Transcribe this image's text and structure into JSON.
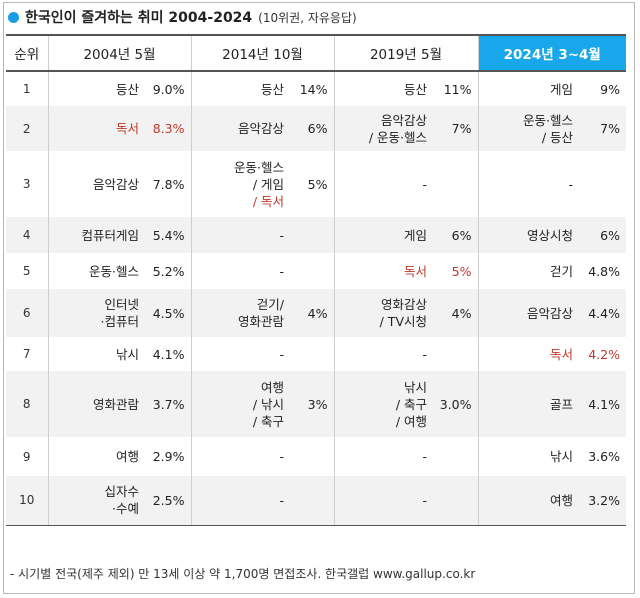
{
  "title": "한국인이 즐겨하는 취미 2004-2024",
  "subtitle": "(10위권, 자유응답)",
  "colors": {
    "accent": "#18a7ea",
    "highlight_text": "#c0392b",
    "shade": "#f2f2f2"
  },
  "header": {
    "rank": "순위",
    "periods": [
      "2004년 5월",
      "2014년 10월",
      "2019년 5월",
      "2024년 3~4월"
    ]
  },
  "rows": [
    {
      "rank": "1",
      "cells": [
        {
          "lines": [
            "등산"
          ],
          "pct": "9.0%",
          "red": false
        },
        {
          "lines": [
            "등산"
          ],
          "pct": "14%",
          "red": false
        },
        {
          "lines": [
            "등산"
          ],
          "pct": "11%",
          "red": false
        },
        {
          "lines": [
            "게임"
          ],
          "pct": "9%",
          "red": false
        }
      ]
    },
    {
      "rank": "2",
      "cells": [
        {
          "lines": [
            "독서"
          ],
          "pct": "8.3%",
          "red": true
        },
        {
          "lines": [
            "음악감상"
          ],
          "pct": "6%",
          "red": false
        },
        {
          "lines": [
            "음악감상",
            "/ 운동·헬스"
          ],
          "pct": "7%",
          "red": false
        },
        {
          "lines": [
            "운동·헬스",
            "/ 등산"
          ],
          "pct": "7%",
          "red": false
        }
      ]
    },
    {
      "rank": "3",
      "cells": [
        {
          "lines": [
            "음악감상"
          ],
          "pct": "7.8%",
          "red": false
        },
        {
          "lines": [
            "운동·헬스",
            "/ 게임",
            "/ 독서"
          ],
          "pct": "5%",
          "red": false,
          "red_line": 2
        },
        {
          "lines": [
            "-"
          ],
          "pct": "",
          "red": false
        },
        {
          "lines": [
            "-"
          ],
          "pct": "",
          "red": false
        }
      ]
    },
    {
      "rank": "4",
      "cells": [
        {
          "lines": [
            "컴퓨터게임"
          ],
          "pct": "5.4%",
          "red": false
        },
        {
          "lines": [
            "-"
          ],
          "pct": "",
          "red": false
        },
        {
          "lines": [
            "게임"
          ],
          "pct": "6%",
          "red": false
        },
        {
          "lines": [
            "영상시청"
          ],
          "pct": "6%",
          "red": false
        }
      ]
    },
    {
      "rank": "5",
      "cells": [
        {
          "lines": [
            "운동·헬스"
          ],
          "pct": "5.2%",
          "red": false
        },
        {
          "lines": [
            "-"
          ],
          "pct": "",
          "red": false
        },
        {
          "lines": [
            "독서"
          ],
          "pct": "5%",
          "red": true
        },
        {
          "lines": [
            "걷기"
          ],
          "pct": "4.8%",
          "red": false
        }
      ]
    },
    {
      "rank": "6",
      "cells": [
        {
          "lines": [
            "인터넷",
            "·컴퓨터"
          ],
          "pct": "4.5%",
          "red": false
        },
        {
          "lines": [
            "걷기/",
            "영화관람"
          ],
          "pct": "4%",
          "red": false
        },
        {
          "lines": [
            "영화감상",
            "/ TV시청"
          ],
          "pct": "4%",
          "red": false
        },
        {
          "lines": [
            "음악감상"
          ],
          "pct": "4.4%",
          "red": false
        }
      ]
    },
    {
      "rank": "7",
      "cells": [
        {
          "lines": [
            "낚시"
          ],
          "pct": "4.1%",
          "red": false
        },
        {
          "lines": [
            "-"
          ],
          "pct": "",
          "red": false
        },
        {
          "lines": [
            "-"
          ],
          "pct": "",
          "red": false
        },
        {
          "lines": [
            "독서"
          ],
          "pct": "4.2%",
          "red": true
        }
      ]
    },
    {
      "rank": "8",
      "cells": [
        {
          "lines": [
            "영화관람"
          ],
          "pct": "3.7%",
          "red": false
        },
        {
          "lines": [
            "여행",
            "/ 낚시",
            "/ 축구"
          ],
          "pct": "3%",
          "red": false
        },
        {
          "lines": [
            "낚시",
            "/ 축구",
            "/ 여행"
          ],
          "pct": "3.0%",
          "red": false
        },
        {
          "lines": [
            "골프"
          ],
          "pct": "4.1%",
          "red": false
        }
      ]
    },
    {
      "rank": "9",
      "cells": [
        {
          "lines": [
            "여행"
          ],
          "pct": "2.9%",
          "red": false
        },
        {
          "lines": [
            "-"
          ],
          "pct": "",
          "red": false
        },
        {
          "lines": [
            "-"
          ],
          "pct": "",
          "red": false
        },
        {
          "lines": [
            "낚시"
          ],
          "pct": "3.6%",
          "red": false
        }
      ]
    },
    {
      "rank": "10",
      "cells": [
        {
          "lines": [
            "십자수",
            "·수예"
          ],
          "pct": "2.5%",
          "red": false
        },
        {
          "lines": [
            "-"
          ],
          "pct": "",
          "red": false
        },
        {
          "lines": [
            "-"
          ],
          "pct": "",
          "red": false
        },
        {
          "lines": [
            "여행"
          ],
          "pct": "3.2%",
          "red": false
        }
      ]
    }
  ],
  "footnote": "- 시기별 전국(제주 제외) 만 13세 이상 약 1,700명 면접조사. 한국갤럽 www.gallup.co.kr"
}
